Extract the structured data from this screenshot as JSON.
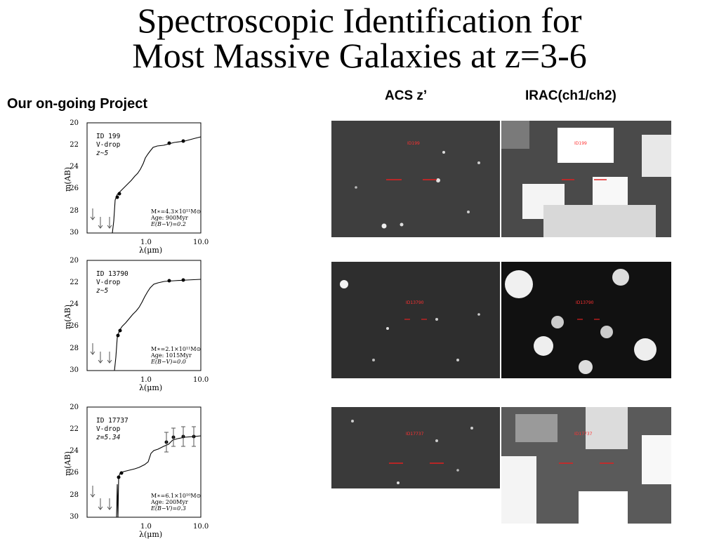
{
  "slide": {
    "title_line1": "Spectroscopic Identification for",
    "title_line2": "Most Massive Galaxies at z=3-6",
    "subtitle": "Our on-going Project",
    "col_acs": "ACS z’",
    "col_irac": "IRAC(ch1/ch2)"
  },
  "sed_common": {
    "ylabel": "m(AB)",
    "xlabel": "λ(μm)",
    "yticks": [
      "20",
      "22",
      "24",
      "26",
      "28",
      "30"
    ],
    "xticks": [
      "1.0",
      "10.0"
    ]
  },
  "panels": [
    {
      "id": "ID 199",
      "drop": "V-drop",
      "z": "z~5",
      "mass": "M∗=4.3×10¹¹M⊙",
      "age": "Age: 900Myr",
      "ebv": "E(B−V)=0.2",
      "acs_label": "ID199",
      "irac_label": "ID199"
    },
    {
      "id": "ID 13790",
      "drop": "V-drop",
      "z": "z~5",
      "mass": "M∗=2.1×10¹¹M⊙",
      "age": "Age: 1015Myr",
      "ebv": "E(B−V)=0.0",
      "acs_label": "ID13790",
      "irac_label": "ID13790"
    },
    {
      "id": "ID 17737",
      "drop": "V-drop",
      "z": "z=5.34",
      "mass": "M∗=6.1×10¹⁰M⊙",
      "age": "Age: 200Myr",
      "ebv": "E(B−V)=0.3",
      "acs_label": "ID17737",
      "irac_label": "ID17737"
    }
  ]
}
